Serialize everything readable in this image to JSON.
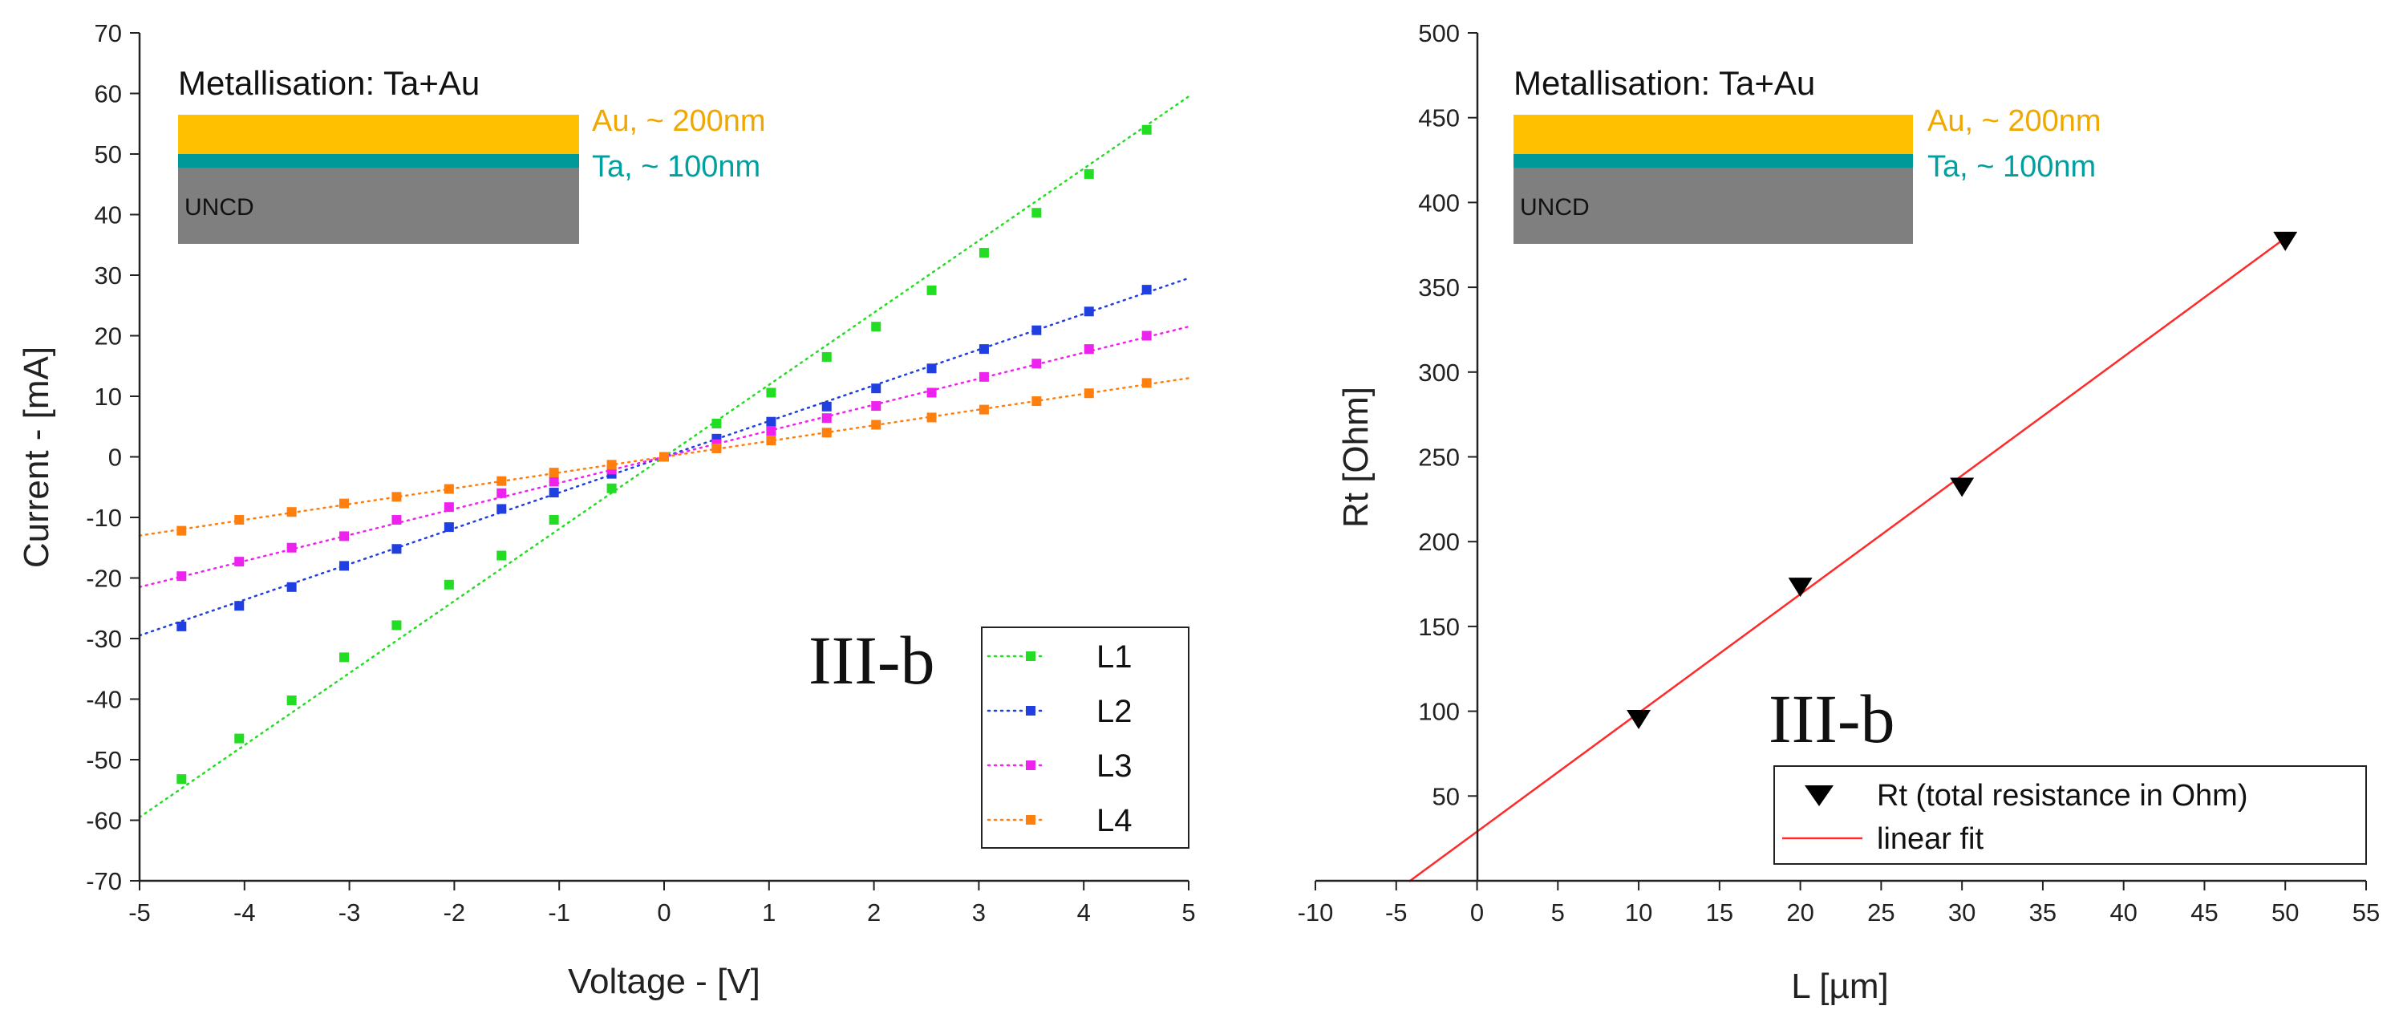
{
  "chart_data": [
    {
      "type": "scatter",
      "title": "",
      "xlabel": "Voltage - [V]",
      "ylabel": "Current - [mA]",
      "xlim": [
        -5,
        5
      ],
      "ylim": [
        -70,
        70
      ],
      "x_ticks": [
        "-5",
        "-4",
        "-3",
        "-2",
        "-1",
        "0",
        "1",
        "2",
        "3",
        "4",
        "5"
      ],
      "y_ticks": [
        "-70",
        "-60",
        "-50",
        "-40",
        "-30",
        "-20",
        "-10",
        "0",
        "10",
        "20",
        "30",
        "40",
        "50",
        "60",
        "70"
      ],
      "panel_label": "III-b",
      "legend_position": "bottom-right",
      "inset": {
        "title": "Metallisation: Ta+Au",
        "layers": [
          {
            "label": "Au, ~ 200nm",
            "color": "#FFC000"
          },
          {
            "label": "Ta, ~ 100nm",
            "color": "#009999"
          },
          {
            "label": "UNCD",
            "color": "#7F7F7F"
          }
        ]
      },
      "x": [
        -4.6,
        -4.05,
        -3.55,
        -3.05,
        -2.55,
        -2.05,
        -1.55,
        -1.05,
        -0.5,
        0,
        0.5,
        1.02,
        1.55,
        2.02,
        2.55,
        3.05,
        3.55,
        4.05,
        4.6
      ],
      "series": [
        {
          "name": "L1",
          "color": "#22DD22",
          "slope": 11.9,
          "values": [
            -53.2,
            -46.5,
            -40.2,
            -33.1,
            -27.8,
            -21.1,
            -16.3,
            -10.4,
            -5.2,
            0,
            5.5,
            10.6,
            16.5,
            21.5,
            27.5,
            33.7,
            40.3,
            46.7,
            54.0
          ]
        },
        {
          "name": "L2",
          "color": "#1F3FE0",
          "slope": 5.9,
          "values": [
            -28.0,
            -24.6,
            -21.5,
            -18.0,
            -15.2,
            -11.6,
            -8.6,
            -5.9,
            -2.8,
            0,
            3.0,
            5.8,
            8.3,
            11.3,
            14.6,
            17.8,
            20.9,
            24.0,
            27.6
          ]
        },
        {
          "name": "L3",
          "color": "#EE22EE",
          "slope": 4.3,
          "values": [
            -19.7,
            -17.3,
            -15.0,
            -13.1,
            -10.4,
            -8.3,
            -6.0,
            -4.1,
            -2.1,
            0,
            2.1,
            4.3,
            6.4,
            8.4,
            10.6,
            13.2,
            15.4,
            17.8,
            20.0
          ]
        },
        {
          "name": "L4",
          "color": "#FF7F0E",
          "slope": 2.6,
          "values": [
            -12.2,
            -10.4,
            -9.1,
            -7.7,
            -6.6,
            -5.3,
            -4.0,
            -2.6,
            -1.3,
            0,
            1.4,
            2.7,
            4.0,
            5.3,
            6.5,
            7.8,
            9.2,
            10.5,
            12.2
          ]
        }
      ]
    },
    {
      "type": "scatter",
      "title": "",
      "xlabel": "L [µm]",
      "ylabel": "Rt [Ohm]",
      "xlim": [
        -10,
        55
      ],
      "ylim": [
        0,
        500
      ],
      "x_ticks": [
        "-10",
        "-5",
        "0",
        "5",
        "10",
        "15",
        "20",
        "25",
        "30",
        "35",
        "40",
        "45",
        "50",
        "55"
      ],
      "y_ticks": [
        "50",
        "100",
        "150",
        "200",
        "250",
        "300",
        "350",
        "400",
        "450",
        "500"
      ],
      "panel_label": "III-b",
      "legend_position": "bottom-right",
      "inset": {
        "title": "Metallisation: Ta+Au",
        "layers": [
          {
            "label": "Au, ~ 200nm",
            "color": "#FFC000"
          },
          {
            "label": "Ta, ~ 100nm",
            "color": "#009999"
          },
          {
            "label": "UNCD",
            "color": "#7F7F7F"
          }
        ]
      },
      "series": [
        {
          "name": "Rt (total resistance in Ohm)",
          "color": "#000000",
          "marker": "triangle-down",
          "x": [
            10,
            20,
            30,
            50
          ],
          "values": [
            96,
            174,
            233,
            378
          ]
        }
      ],
      "fit": {
        "name": "linear fit",
        "color": "#FF2A2A",
        "intercept": 29,
        "slope": 7.0,
        "x_range": [
          -4.2,
          50
        ]
      }
    }
  ]
}
